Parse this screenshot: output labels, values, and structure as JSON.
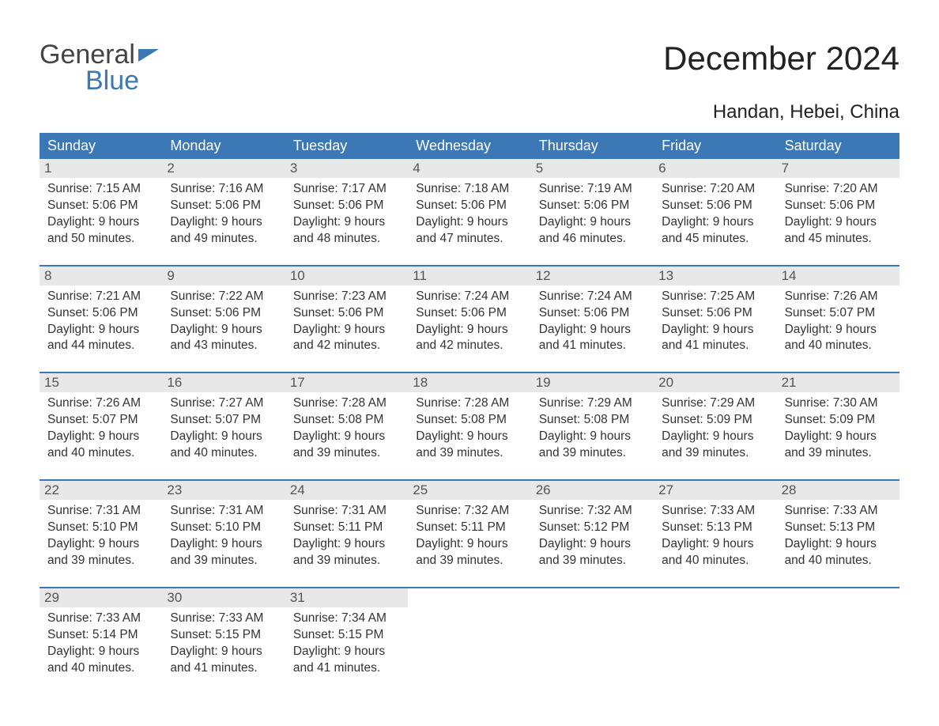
{
  "brand": {
    "line1": "General",
    "line2": "Blue",
    "brand_color": "#3b78b5",
    "text_color": "#444444"
  },
  "title": "December 2024",
  "location": "Handan, Hebei, China",
  "colors": {
    "header_bg": "#3b78b5",
    "header_text": "#ffffff",
    "daynum_bg": "#e8e8e8",
    "daynum_text": "#555555",
    "body_text": "#333333",
    "week_border": "#3b78b5",
    "page_bg": "#ffffff"
  },
  "fonts": {
    "title_size": 42,
    "location_size": 24,
    "header_size": 18,
    "daynum_size": 17,
    "info_size": 15.5
  },
  "layout": {
    "columns": 7,
    "week_count": 5,
    "cell_lines": 4
  },
  "day_names": [
    "Sunday",
    "Monday",
    "Tuesday",
    "Wednesday",
    "Thursday",
    "Friday",
    "Saturday"
  ],
  "labels": {
    "sunrise": "Sunrise:",
    "sunset": "Sunset:",
    "daylight": "Daylight:"
  },
  "weeks": [
    [
      {
        "n": "1",
        "sunrise": "7:15 AM",
        "sunset": "5:06 PM",
        "dl1": "9 hours",
        "dl2": "and 50 minutes."
      },
      {
        "n": "2",
        "sunrise": "7:16 AM",
        "sunset": "5:06 PM",
        "dl1": "9 hours",
        "dl2": "and 49 minutes."
      },
      {
        "n": "3",
        "sunrise": "7:17 AM",
        "sunset": "5:06 PM",
        "dl1": "9 hours",
        "dl2": "and 48 minutes."
      },
      {
        "n": "4",
        "sunrise": "7:18 AM",
        "sunset": "5:06 PM",
        "dl1": "9 hours",
        "dl2": "and 47 minutes."
      },
      {
        "n": "5",
        "sunrise": "7:19 AM",
        "sunset": "5:06 PM",
        "dl1": "9 hours",
        "dl2": "and 46 minutes."
      },
      {
        "n": "6",
        "sunrise": "7:20 AM",
        "sunset": "5:06 PM",
        "dl1": "9 hours",
        "dl2": "and 45 minutes."
      },
      {
        "n": "7",
        "sunrise": "7:20 AM",
        "sunset": "5:06 PM",
        "dl1": "9 hours",
        "dl2": "and 45 minutes."
      }
    ],
    [
      {
        "n": "8",
        "sunrise": "7:21 AM",
        "sunset": "5:06 PM",
        "dl1": "9 hours",
        "dl2": "and 44 minutes."
      },
      {
        "n": "9",
        "sunrise": "7:22 AM",
        "sunset": "5:06 PM",
        "dl1": "9 hours",
        "dl2": "and 43 minutes."
      },
      {
        "n": "10",
        "sunrise": "7:23 AM",
        "sunset": "5:06 PM",
        "dl1": "9 hours",
        "dl2": "and 42 minutes."
      },
      {
        "n": "11",
        "sunrise": "7:24 AM",
        "sunset": "5:06 PM",
        "dl1": "9 hours",
        "dl2": "and 42 minutes."
      },
      {
        "n": "12",
        "sunrise": "7:24 AM",
        "sunset": "5:06 PM",
        "dl1": "9 hours",
        "dl2": "and 41 minutes."
      },
      {
        "n": "13",
        "sunrise": "7:25 AM",
        "sunset": "5:06 PM",
        "dl1": "9 hours",
        "dl2": "and 41 minutes."
      },
      {
        "n": "14",
        "sunrise": "7:26 AM",
        "sunset": "5:07 PM",
        "dl1": "9 hours",
        "dl2": "and 40 minutes."
      }
    ],
    [
      {
        "n": "15",
        "sunrise": "7:26 AM",
        "sunset": "5:07 PM",
        "dl1": "9 hours",
        "dl2": "and 40 minutes."
      },
      {
        "n": "16",
        "sunrise": "7:27 AM",
        "sunset": "5:07 PM",
        "dl1": "9 hours",
        "dl2": "and 40 minutes."
      },
      {
        "n": "17",
        "sunrise": "7:28 AM",
        "sunset": "5:08 PM",
        "dl1": "9 hours",
        "dl2": "and 39 minutes."
      },
      {
        "n": "18",
        "sunrise": "7:28 AM",
        "sunset": "5:08 PM",
        "dl1": "9 hours",
        "dl2": "and 39 minutes."
      },
      {
        "n": "19",
        "sunrise": "7:29 AM",
        "sunset": "5:08 PM",
        "dl1": "9 hours",
        "dl2": "and 39 minutes."
      },
      {
        "n": "20",
        "sunrise": "7:29 AM",
        "sunset": "5:09 PM",
        "dl1": "9 hours",
        "dl2": "and 39 minutes."
      },
      {
        "n": "21",
        "sunrise": "7:30 AM",
        "sunset": "5:09 PM",
        "dl1": "9 hours",
        "dl2": "and 39 minutes."
      }
    ],
    [
      {
        "n": "22",
        "sunrise": "7:31 AM",
        "sunset": "5:10 PM",
        "dl1": "9 hours",
        "dl2": "and 39 minutes."
      },
      {
        "n": "23",
        "sunrise": "7:31 AM",
        "sunset": "5:10 PM",
        "dl1": "9 hours",
        "dl2": "and 39 minutes."
      },
      {
        "n": "24",
        "sunrise": "7:31 AM",
        "sunset": "5:11 PM",
        "dl1": "9 hours",
        "dl2": "and 39 minutes."
      },
      {
        "n": "25",
        "sunrise": "7:32 AM",
        "sunset": "5:11 PM",
        "dl1": "9 hours",
        "dl2": "and 39 minutes."
      },
      {
        "n": "26",
        "sunrise": "7:32 AM",
        "sunset": "5:12 PM",
        "dl1": "9 hours",
        "dl2": "and 39 minutes."
      },
      {
        "n": "27",
        "sunrise": "7:33 AM",
        "sunset": "5:13 PM",
        "dl1": "9 hours",
        "dl2": "and 40 minutes."
      },
      {
        "n": "28",
        "sunrise": "7:33 AM",
        "sunset": "5:13 PM",
        "dl1": "9 hours",
        "dl2": "and 40 minutes."
      }
    ],
    [
      {
        "n": "29",
        "sunrise": "7:33 AM",
        "sunset": "5:14 PM",
        "dl1": "9 hours",
        "dl2": "and 40 minutes."
      },
      {
        "n": "30",
        "sunrise": "7:33 AM",
        "sunset": "5:15 PM",
        "dl1": "9 hours",
        "dl2": "and 41 minutes."
      },
      {
        "n": "31",
        "sunrise": "7:34 AM",
        "sunset": "5:15 PM",
        "dl1": "9 hours",
        "dl2": "and 41 minutes."
      },
      null,
      null,
      null,
      null
    ]
  ]
}
